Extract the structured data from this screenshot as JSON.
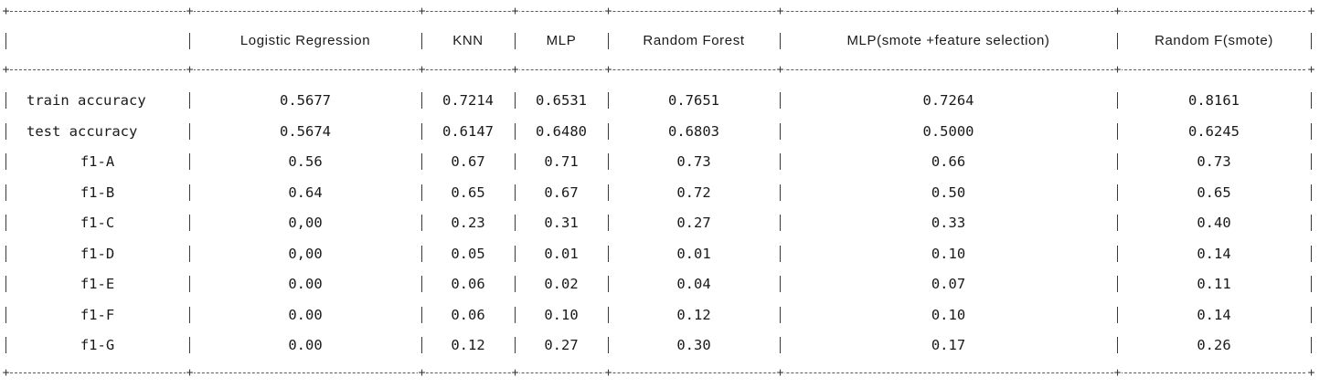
{
  "table": {
    "columns": [
      "",
      "Logistic Regression",
      "KNN",
      "MLP",
      "Random Forest",
      "MLP(smote +feature selection)",
      "Random F(smote)"
    ],
    "rows": [
      {
        "label": "train accuracy",
        "values": [
          "0.5677",
          "0.7214",
          "0.6531",
          "0.7651",
          "0.7264",
          "0.8161"
        ]
      },
      {
        "label": "test accuracy",
        "values": [
          "0.5674",
          "0.6147",
          "0.6480",
          "0.6803",
          "0.5000",
          "0.6245"
        ]
      },
      {
        "label": "f1-A",
        "values": [
          "0.56",
          "0.67",
          "0.71",
          "0.73",
          "0.66",
          "0.73"
        ]
      },
      {
        "label": "f1-B",
        "values": [
          "0.64",
          "0.65",
          "0.67",
          "0.72",
          "0.50",
          "0.65"
        ]
      },
      {
        "label": "f1-C",
        "values": [
          "0,00",
          "0.23",
          "0.31",
          "0.27",
          "0.33",
          "0.40"
        ]
      },
      {
        "label": "f1-D",
        "values": [
          "0,00",
          "0.05",
          "0.01",
          "0.01",
          "0.10",
          "0.14"
        ]
      },
      {
        "label": "f1-E",
        "values": [
          "0.00",
          "0.06",
          "0.02",
          "0.04",
          "0.07",
          "0.11"
        ]
      },
      {
        "label": "f1-F",
        "values": [
          "0.00",
          "0.06",
          "0.10",
          "0.12",
          "0.10",
          "0.14"
        ]
      },
      {
        "label": "f1-G",
        "values": [
          "0.00",
          "0.12",
          "0.27",
          "0.30",
          "0.17",
          "0.26"
        ]
      }
    ]
  },
  "chart_data": {
    "type": "table",
    "columns": [
      "",
      "Logistic Regression",
      "KNN",
      "MLP",
      "Random Forest",
      "MLP(smote +feature selection)",
      "Random F(smote)"
    ],
    "rows": [
      [
        "train accuracy",
        "0.5677",
        "0.7214",
        "0.6531",
        "0.7651",
        "0.7264",
        "0.8161"
      ],
      [
        "test accuracy",
        "0.5674",
        "0.6147",
        "0.6480",
        "0.6803",
        "0.5000",
        "0.6245"
      ],
      [
        "f1-A",
        "0.56",
        "0.67",
        "0.71",
        "0.73",
        "0.66",
        "0.73"
      ],
      [
        "f1-B",
        "0.64",
        "0.65",
        "0.67",
        "0.72",
        "0.50",
        "0.65"
      ],
      [
        "f1-C",
        "0,00",
        "0.23",
        "0.31",
        "0.27",
        "0.33",
        "0.40"
      ],
      [
        "f1-D",
        "0,00",
        "0.05",
        "0.01",
        "0.01",
        "0.10",
        "0.14"
      ],
      [
        "f1-E",
        "0.00",
        "0.06",
        "0.02",
        "0.04",
        "0.07",
        "0.11"
      ],
      [
        "f1-F",
        "0.00",
        "0.06",
        "0.10",
        "0.12",
        "0.10",
        "0.14"
      ],
      [
        "f1-G",
        "0.00",
        "0.12",
        "0.27",
        "0.30",
        "0.17",
        "0.26"
      ]
    ]
  }
}
